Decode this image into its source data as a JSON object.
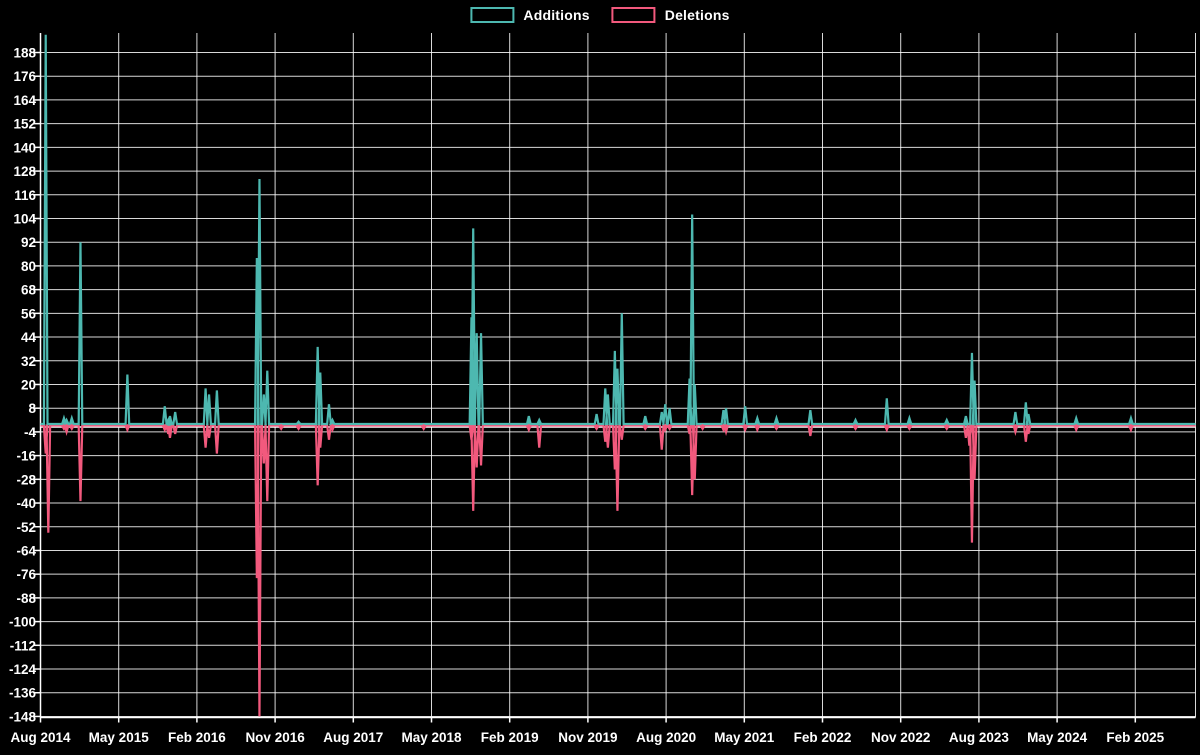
{
  "legend": {
    "items": [
      {
        "label": "Additions",
        "color": "#4DB8B0"
      },
      {
        "label": "Deletions",
        "color": "#F2597D"
      }
    ]
  },
  "chart_data": {
    "type": "line",
    "title": "",
    "description": "Weekly code additions (teal, positive spikes) and deletions (pink, negative spikes) over time",
    "legend_position": "top-center",
    "grid": true,
    "background_color": "#000000",
    "grid_color": "rgba(255,255,255,0.85)",
    "axis_color": "#ffffff",
    "zero_line_color": "#ffffff",
    "series": [
      {
        "name": "Additions",
        "color": "#4DB8B0"
      },
      {
        "name": "Deletions",
        "color": "#F2597D"
      }
    ],
    "x_axis": {
      "tick_labels": [
        "Aug 2014",
        "May 2015",
        "Feb 2016",
        "Nov 2016",
        "Aug 2017",
        "May 2018",
        "Feb 2019",
        "Nov 2019",
        "Aug 2020",
        "May 2021",
        "Feb 2022",
        "Nov 2022",
        "Aug 2023",
        "May 2024",
        "Feb 2025"
      ],
      "tick_interval_months": 9,
      "range_months": [
        0,
        133
      ]
    },
    "y_axis": {
      "tick_labels": [
        188,
        176,
        164,
        152,
        140,
        128,
        116,
        104,
        92,
        80,
        68,
        56,
        44,
        32,
        20,
        8,
        -4,
        -16,
        -28,
        -40,
        -52,
        -64,
        -76,
        -88,
        -100,
        -112,
        -124,
        -136,
        -148
      ],
      "tick_step": 12,
      "min": -150,
      "max": 198
    },
    "events_format": [
      "months_since_aug_2014",
      "additions",
      "deletions"
    ],
    "events": [
      [
        0.6,
        197,
        -15
      ],
      [
        0.9,
        0,
        -55
      ],
      [
        2.7,
        3,
        -2
      ],
      [
        3.0,
        2,
        -4
      ],
      [
        3.6,
        3,
        -2
      ],
      [
        4.6,
        92,
        -39
      ],
      [
        10.0,
        25,
        -3
      ],
      [
        14.3,
        9,
        -3
      ],
      [
        14.7,
        2,
        -5
      ],
      [
        14.9,
        4,
        -7
      ],
      [
        15.5,
        6,
        -5
      ],
      [
        19.0,
        18,
        -12
      ],
      [
        19.4,
        15,
        -7
      ],
      [
        20.3,
        17,
        -15
      ],
      [
        24.9,
        84,
        -78
      ],
      [
        25.2,
        124,
        -148
      ],
      [
        25.7,
        15,
        -20
      ],
      [
        26.1,
        27,
        -39
      ],
      [
        27.7,
        0,
        -2
      ],
      [
        29.7,
        1,
        -2
      ],
      [
        31.9,
        39,
        -31
      ],
      [
        32.2,
        26,
        -12
      ],
      [
        33.2,
        10,
        -8
      ],
      [
        33.6,
        2,
        -3
      ],
      [
        44.1,
        0,
        -2
      ],
      [
        49.6,
        54,
        -8
      ],
      [
        49.8,
        99,
        -44
      ],
      [
        50.2,
        46,
        -22
      ],
      [
        50.7,
        46,
        -21
      ],
      [
        56.2,
        4,
        -3
      ],
      [
        57.4,
        2,
        -12
      ],
      [
        64.0,
        5,
        -2
      ],
      [
        65.0,
        18,
        -9
      ],
      [
        65.3,
        15,
        -12
      ],
      [
        66.1,
        37,
        -23
      ],
      [
        66.4,
        28,
        -44
      ],
      [
        66.9,
        56,
        -8
      ],
      [
        69.6,
        4,
        -2
      ],
      [
        71.5,
        6,
        -13
      ],
      [
        71.9,
        10,
        -3
      ],
      [
        72.4,
        8,
        -2
      ],
      [
        74.7,
        23,
        -5
      ],
      [
        75.0,
        106,
        -36
      ],
      [
        75.3,
        20,
        -28
      ],
      [
        76.2,
        0,
        -2
      ],
      [
        78.6,
        7,
        -3
      ],
      [
        78.9,
        8,
        -4
      ],
      [
        81.1,
        9,
        -3
      ],
      [
        82.5,
        3,
        -3
      ],
      [
        84.7,
        3,
        -2
      ],
      [
        88.6,
        7,
        -6
      ],
      [
        93.8,
        2,
        -1
      ],
      [
        97.4,
        13,
        -3
      ],
      [
        100.0,
        3,
        -2
      ],
      [
        104.3,
        2,
        -2
      ],
      [
        106.5,
        4,
        -7
      ],
      [
        106.9,
        0,
        -11
      ],
      [
        107.2,
        36,
        -60
      ],
      [
        107.5,
        22,
        -28
      ],
      [
        112.2,
        6,
        -4
      ],
      [
        113.4,
        11,
        -9
      ],
      [
        113.7,
        5,
        -5
      ],
      [
        119.2,
        3,
        -3
      ],
      [
        125.5,
        3,
        -3
      ]
    ]
  }
}
